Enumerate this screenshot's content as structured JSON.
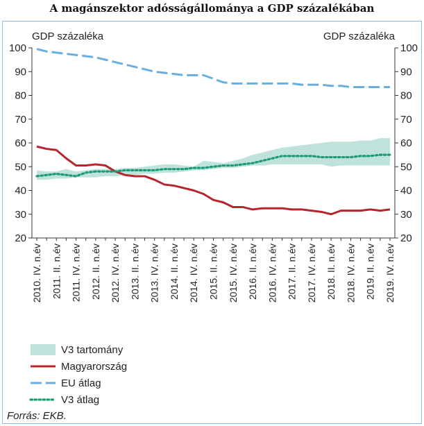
{
  "title": "A magánszektor adósságállománya a GDP százalékában",
  "source": "Forrás: EKB.",
  "chart_data": {
    "type": "line",
    "ylabel_left": "GDP százaléka",
    "ylabel_right": "GDP százaléka",
    "ylim": [
      20,
      100
    ],
    "yticks": [
      20,
      30,
      40,
      50,
      60,
      70,
      80,
      90,
      100
    ],
    "grid": false,
    "legend_position": "bottom-left",
    "categories": [
      "2010. IV. n.év",
      "2011. I. n.év",
      "2011. II. n.év",
      "2011. III. n.év",
      "2011. IV. n.év",
      "2012. I. n.év",
      "2012. II. n.év",
      "2012. III. n.év",
      "2012. IV. n.év",
      "2013. I. n.év",
      "2013. II. n.év",
      "2013. III. n.év",
      "2013. IV. n.év",
      "2014. I. n.év",
      "2014. II. n.év",
      "2014. III. n.év",
      "2014. IV. n.év",
      "2015. I. n.év",
      "2015. II. n.év",
      "2015. III. n.év",
      "2015. IV. n.év",
      "2016. I. n.év",
      "2016. II. n.év",
      "2016. III. n.év",
      "2016. IV. n.év",
      "2017. I. n.év",
      "2017. II. n.év",
      "2017. III. n.év",
      "2017. IV. n.év",
      "2018. I. n.év",
      "2018. II. n.év",
      "2018. III. n.év",
      "2018. IV. n.év",
      "2019. I. n.év",
      "2019. II. n.év",
      "2019. III. n.év",
      "2019. IV. n.év"
    ],
    "tick_labels": [
      "2010. IV. n.év",
      "2011. II. n.év",
      "2011. IV. n.év",
      "2012. II. n.év",
      "2012. IV. n.év",
      "2013. II. n.év",
      "2013. IV. n.év",
      "2014. II. n.év",
      "2014. IV. n.év",
      "2015. II. n.év",
      "2015. IV. n.év",
      "2016. II. n.év",
      "2016. IV. n.év",
      "2017. II. n.év",
      "2017. IV. n.év",
      "2018. II. n.év",
      "2018. IV. n.év",
      "2019. II. n.év",
      "2019. IV. n.év"
    ],
    "series": [
      {
        "name": "V3 tartomány",
        "kind": "range",
        "color": "#bfe3da",
        "low": [
          44.5,
          44.5,
          45,
          45,
          45.5,
          45.5,
          45.5,
          46,
          46,
          46.5,
          46.5,
          47,
          47,
          47.5,
          47.5,
          48,
          48.5,
          48.5,
          49,
          49.5,
          49.5,
          50,
          50.5,
          50.5,
          51,
          51,
          51,
          51,
          51,
          51,
          50,
          50.5,
          50.5,
          50.5,
          50.5,
          50.5,
          50.5
        ],
        "high": [
          48.5,
          48,
          48,
          49,
          48,
          48.5,
          49,
          49,
          49,
          49.5,
          49.5,
          50,
          50.5,
          51,
          51,
          50.5,
          50,
          52.5,
          52,
          51.5,
          52.5,
          53.5,
          55,
          56,
          57,
          58,
          58.5,
          59,
          59.5,
          60,
          60.5,
          60.5,
          60.5,
          61,
          61,
          62,
          62
        ]
      },
      {
        "name": "Magyarország",
        "kind": "line",
        "color": "#b8242b",
        "values": [
          58.5,
          57.5,
          57,
          53.5,
          50.5,
          50.5,
          51,
          50.5,
          48,
          46.5,
          46,
          46,
          44.5,
          42.5,
          42,
          41,
          40,
          38.5,
          36,
          35,
          33,
          33,
          32,
          32.5,
          32.5,
          32.5,
          32,
          32,
          31.5,
          31,
          30,
          31.5,
          31.5,
          31.5,
          32,
          31.5,
          32
        ]
      },
      {
        "name": "EU átlag",
        "kind": "line",
        "dash": "long",
        "color": "#6aaedf",
        "values": [
          99.5,
          98.5,
          98,
          97.5,
          97,
          96.5,
          96,
          95,
          94,
          93,
          92,
          91,
          90,
          89.5,
          89,
          88.5,
          88.5,
          88.5,
          87,
          85.5,
          85,
          85,
          85,
          85,
          85,
          85,
          85,
          84.5,
          84.5,
          84.5,
          84,
          84,
          83.5,
          83.5,
          83.5,
          83.5,
          83.5
        ]
      },
      {
        "name": "V3 átlag",
        "kind": "line",
        "dash": "dot",
        "color": "#1e9a78",
        "values": [
          46,
          46.5,
          47,
          46.5,
          46,
          47.5,
          48,
          48,
          48,
          48.5,
          48.5,
          48.5,
          48.5,
          49,
          49,
          49,
          49.5,
          49.5,
          50,
          50.5,
          50.5,
          51,
          51.5,
          52.5,
          53.5,
          54.5,
          54.5,
          54.5,
          54.5,
          54,
          54,
          54,
          54,
          54.5,
          54.5,
          55,
          55
        ]
      }
    ]
  }
}
